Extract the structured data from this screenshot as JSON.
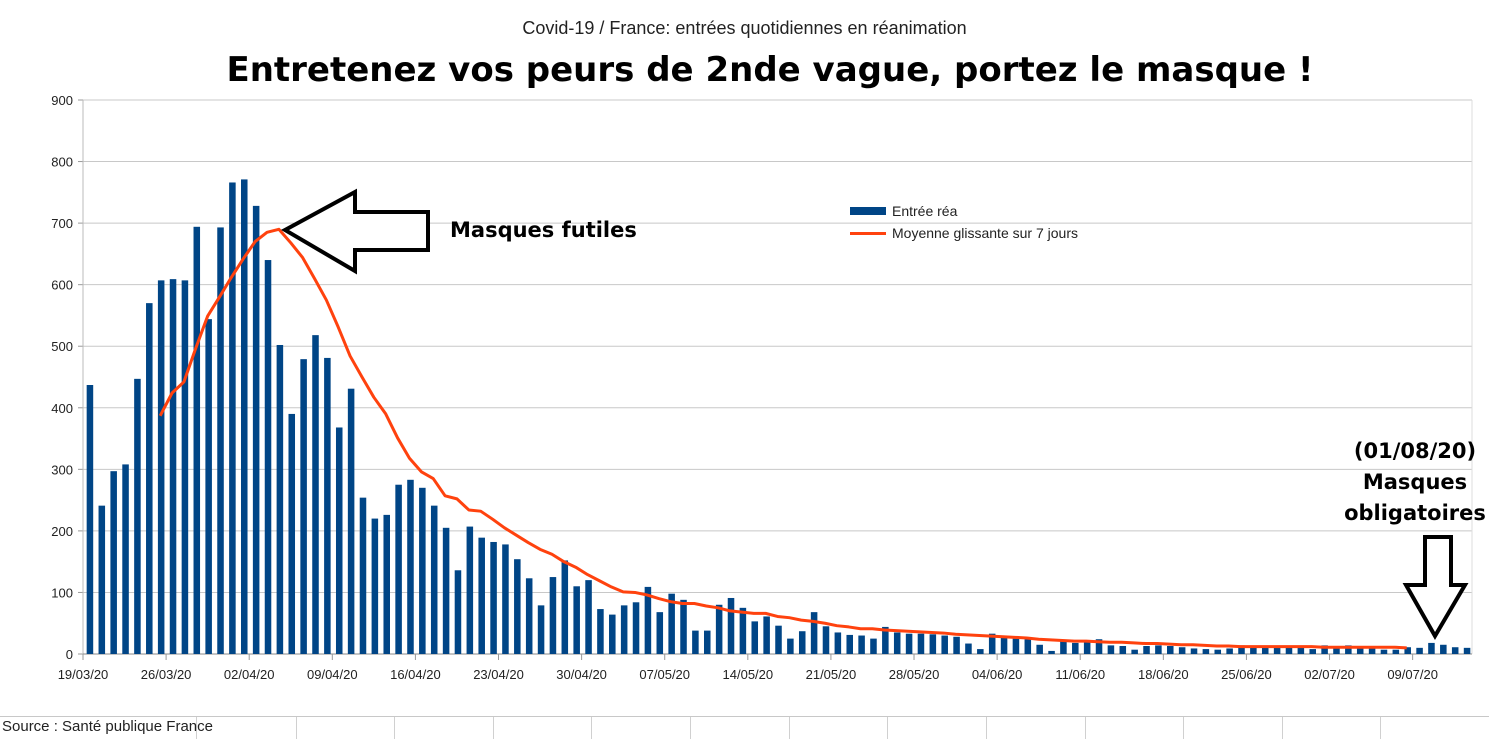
{
  "subtitle": "Covid-19 / France: entrées quotidiennes en réanimation",
  "headline": "Entretenez vos peurs de 2nde vague, portez le masque !",
  "annotations": {
    "futiles": "Masques futiles",
    "date": "(01/08/20)",
    "line1": "Masques",
    "line2": "obligatoires"
  },
  "source": "Source : Santé publique France",
  "colors": {
    "bars": "#004586",
    "line": "#ff420e",
    "grid": "#c8c8c8"
  },
  "chart_data": {
    "type": "bar",
    "ylim": [
      0,
      900
    ],
    "y_ticks": [
      0,
      100,
      200,
      300,
      400,
      500,
      600,
      700,
      800,
      900
    ],
    "grid": true,
    "legend_position": "top-right",
    "x_tick_labels": [
      "19/03/20",
      "26/03/20",
      "02/04/20",
      "09/04/20",
      "16/04/20",
      "23/04/20",
      "30/04/20",
      "07/05/20",
      "14/05/20",
      "21/05/20",
      "28/05/20",
      "04/06/20",
      "11/06/20",
      "18/06/20",
      "25/06/20",
      "02/07/20",
      "09/07/20"
    ],
    "series": [
      {
        "name": "Entrée réa",
        "type": "bar",
        "values": [
          437,
          241,
          297,
          308,
          447,
          570,
          607,
          609,
          607,
          694,
          544,
          693,
          766,
          771,
          728,
          640,
          502,
          390,
          479,
          518,
          481,
          368,
          431,
          254,
          220,
          226,
          275,
          283,
          270,
          241,
          205,
          136,
          207,
          189,
          182,
          178,
          154,
          123,
          79,
          125,
          152,
          110,
          120,
          73,
          64,
          79,
          84,
          109,
          68,
          98,
          88,
          38,
          38,
          80,
          91,
          75,
          53,
          61,
          46,
          25,
          37,
          68,
          45,
          35,
          31,
          30,
          25,
          44,
          35,
          33,
          33,
          32,
          30,
          28,
          17,
          8,
          33,
          27,
          25,
          24,
          15,
          5,
          22,
          18,
          22,
          24,
          14,
          13,
          7,
          13,
          14,
          13,
          11,
          9,
          8,
          7,
          9,
          14,
          13,
          10,
          12,
          13,
          12,
          8,
          14,
          10,
          14,
          10,
          11,
          7,
          7,
          11,
          10,
          18,
          15,
          11,
          10
        ]
      },
      {
        "name": "Moyenne glissante sur 7 jours",
        "type": "line",
        "start_index": 6,
        "values": [
          387,
          424,
          442,
          497,
          549,
          580,
          612,
          642,
          670,
          685,
          690,
          668,
          644,
          610,
          575,
          531,
          484,
          450,
          417,
          390,
          351,
          318,
          296,
          285,
          257,
          252,
          234,
          232,
          219,
          205,
          193,
          181,
          170,
          162,
          150,
          141,
          129,
          119,
          109,
          101,
          100,
          96,
          90,
          85,
          82,
          82,
          78,
          75,
          70,
          68,
          66,
          66,
          61,
          59,
          55,
          53,
          50,
          46,
          44,
          41,
          41,
          39,
          38,
          37,
          36,
          35,
          34,
          32,
          31,
          30,
          29,
          28,
          27,
          26,
          24,
          23,
          22,
          21,
          21,
          20,
          19,
          19,
          18,
          17,
          17,
          16,
          15,
          15,
          14,
          13,
          13,
          12,
          12,
          12,
          12,
          12,
          12,
          12,
          11,
          11,
          11,
          11,
          11,
          11,
          11,
          10
        ]
      }
    ]
  }
}
